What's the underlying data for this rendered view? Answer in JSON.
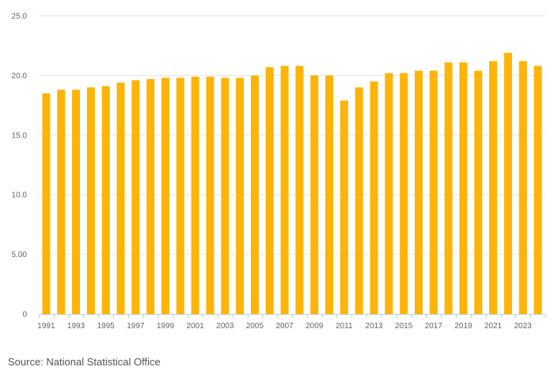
{
  "chart_data": {
    "type": "bar",
    "title": "",
    "xlabel": "",
    "ylabel": "",
    "categories": [
      "1991",
      "1992",
      "1993",
      "1994",
      "1995",
      "1996",
      "1997",
      "1998",
      "1999",
      "2000",
      "2001",
      "2002",
      "2003",
      "2004",
      "2005",
      "2006",
      "2007",
      "2008",
      "2009",
      "2010",
      "2011",
      "2012",
      "2013",
      "2014",
      "2015",
      "2016",
      "2017",
      "2018",
      "2019",
      "2020",
      "2021",
      "2022",
      "2023",
      "2024"
    ],
    "values": [
      18.5,
      18.8,
      18.8,
      19.0,
      19.1,
      19.4,
      19.6,
      19.7,
      19.8,
      19.8,
      19.9,
      19.9,
      19.8,
      19.8,
      20.0,
      20.7,
      20.8,
      20.8,
      20.0,
      20.0,
      17.9,
      19.0,
      19.5,
      20.2,
      20.2,
      20.4,
      20.4,
      21.1,
      21.1,
      20.4,
      21.2,
      21.9,
      21.2,
      20.8
    ],
    "ylim": [
      0,
      25
    ],
    "y_ticks": [
      0,
      5,
      10,
      15,
      20,
      25
    ],
    "y_tick_labels": [
      "0",
      "5.00",
      "10.0",
      "15.0",
      "20.0",
      "25.0"
    ],
    "x_tick_labels": [
      "1991",
      "1993",
      "1995",
      "1997",
      "1999",
      "2001",
      "2003",
      "2005",
      "2007",
      "2009",
      "2011",
      "2013",
      "2015",
      "2017",
      "2019",
      "2021",
      "2023"
    ],
    "grid": true,
    "legend": "none",
    "bar_color": "#FDB408",
    "grid_color": "#e6e6e6",
    "axis_color": "#cccccc"
  },
  "source_note": "Source: National Statistical Office"
}
